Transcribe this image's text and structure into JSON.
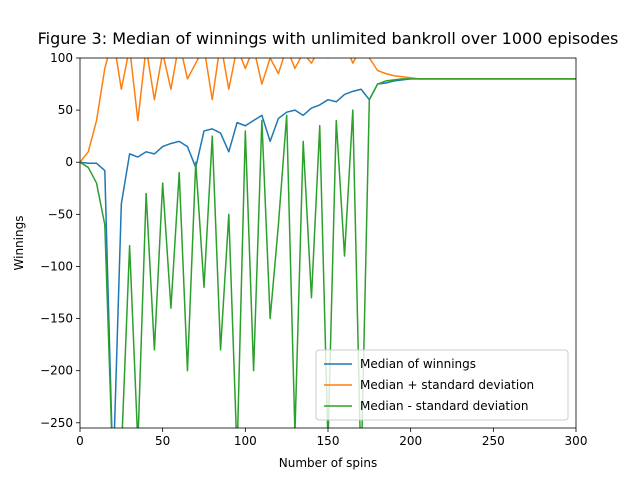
{
  "chart_data": {
    "type": "line",
    "title": "Figure 3: Median of winnings with unlimited bankroll over 1000 episodes",
    "x_label": "Number of spins",
    "y_label": "Winnings",
    "x": [
      0,
      5,
      10,
      15,
      20,
      25,
      30,
      35,
      40,
      45,
      50,
      55,
      60,
      65,
      70,
      75,
      80,
      85,
      90,
      95,
      100,
      105,
      110,
      115,
      120,
      125,
      130,
      135,
      140,
      145,
      150,
      155,
      160,
      165,
      170,
      175,
      180,
      185,
      190,
      195,
      200,
      205,
      210,
      215,
      220,
      225,
      230,
      235,
      240,
      245,
      250,
      255,
      260,
      265,
      270,
      275,
      280,
      285,
      290,
      295,
      300
    ],
    "series": [
      {
        "name": "Median of winnings",
        "color": "#1f77b4",
        "values": [
          0,
          -1,
          -1,
          -8,
          -300,
          -40,
          8,
          5,
          10,
          8,
          15,
          18,
          20,
          15,
          -5,
          30,
          32,
          28,
          10,
          38,
          35,
          40,
          45,
          20,
          42,
          48,
          50,
          45,
          52,
          55,
          60,
          58,
          65,
          68,
          70,
          60,
          75,
          76,
          78,
          79,
          80,
          80,
          80,
          80,
          80,
          80,
          80,
          80,
          80,
          80,
          80,
          80,
          80,
          80,
          80,
          80,
          80,
          80,
          80,
          80,
          80
        ]
      },
      {
        "name": "Median + standard deviation",
        "color": "#ff7f0e",
        "values": [
          0,
          10,
          40,
          90,
          120,
          70,
          110,
          40,
          110,
          60,
          105,
          70,
          115,
          80,
          95,
          110,
          60,
          115,
          70,
          110,
          90,
          110,
          75,
          100,
          85,
          110,
          90,
          105,
          95,
          110,
          100,
          105,
          115,
          95,
          110,
          100,
          88,
          85,
          83,
          82,
          81,
          80,
          80,
          80,
          80,
          80,
          80,
          80,
          80,
          80,
          80,
          80,
          80,
          80,
          80,
          80,
          80,
          80,
          80,
          80,
          80
        ]
      },
      {
        "name": "Median - standard deviation",
        "color": "#2ca02c",
        "values": [
          0,
          -5,
          -20,
          -60,
          -300,
          -280,
          -80,
          -270,
          -30,
          -180,
          -20,
          -140,
          -10,
          -200,
          0,
          -120,
          25,
          -180,
          -50,
          -280,
          30,
          -200,
          40,
          -150,
          -60,
          45,
          -260,
          20,
          -130,
          35,
          -270,
          40,
          -90,
          50,
          -300,
          60,
          75,
          78,
          79,
          80,
          80,
          80,
          80,
          80,
          80,
          80,
          80,
          80,
          80,
          80,
          80,
          80,
          80,
          80,
          80,
          80,
          80,
          80,
          80,
          80,
          80
        ]
      }
    ],
    "xlim": [
      0,
      300
    ],
    "xticks": [
      0,
      50,
      100,
      150,
      200,
      250,
      300
    ],
    "ylim": [
      -255,
      100
    ],
    "yticks": [
      100,
      50,
      0,
      {
        "value": -50,
        "label": "−50"
      },
      {
        "value": -100,
        "label": "−100"
      },
      {
        "value": -150,
        "label": "−150"
      },
      {
        "value": -200,
        "label": "−200"
      },
      {
        "value": -250,
        "label": "−250"
      }
    ],
    "legend": "lower right"
  }
}
